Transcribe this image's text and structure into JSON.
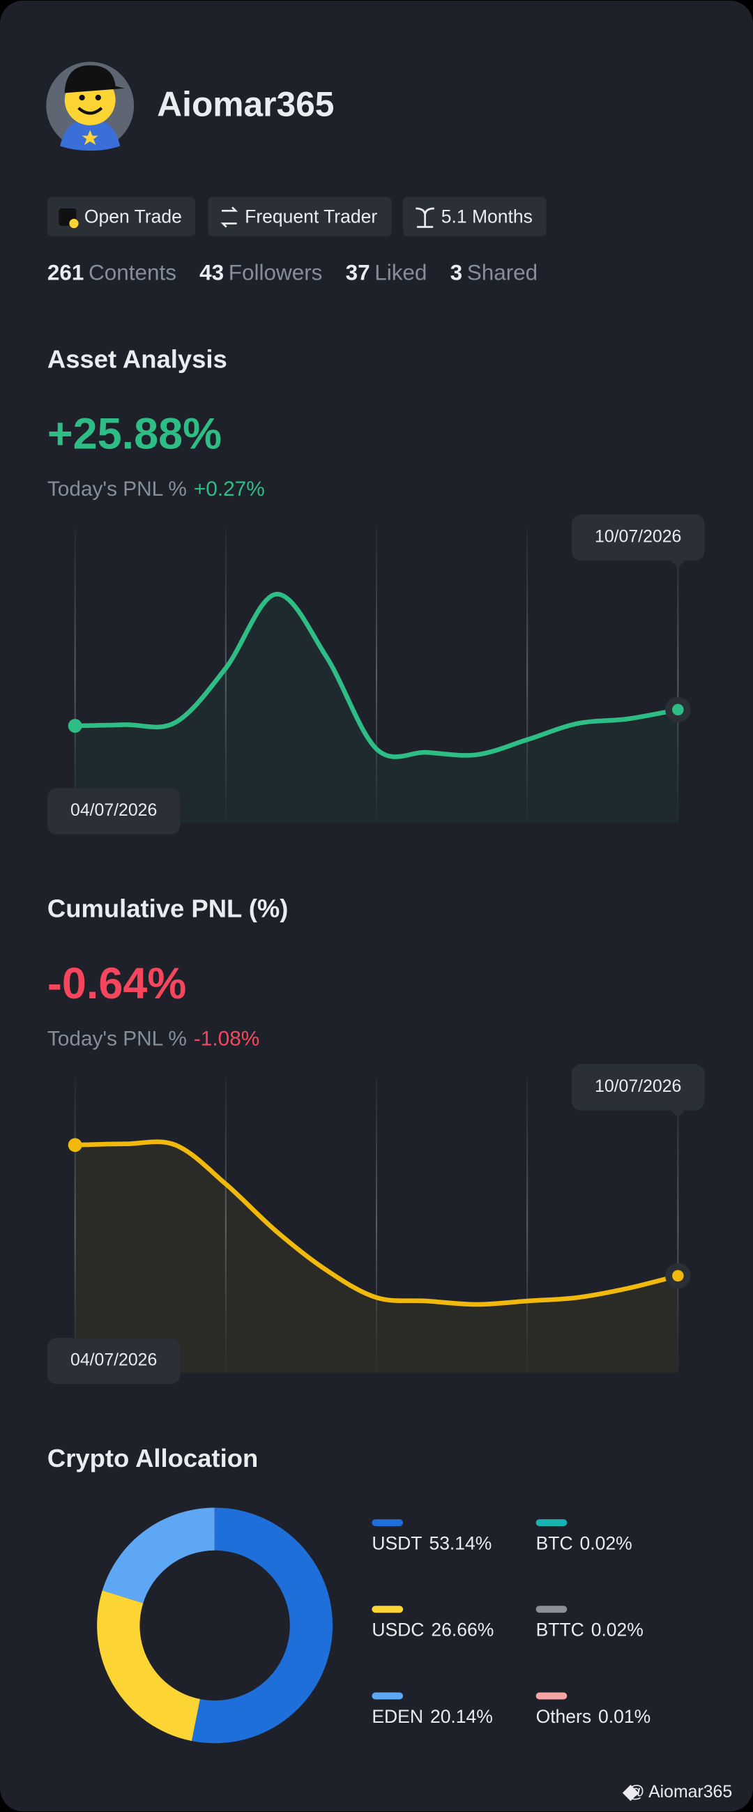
{
  "profile": {
    "name": "Aiomar365",
    "tags": [
      "Open Trade",
      "Frequent Trader",
      "5.1 Months"
    ],
    "stats": [
      {
        "value": 261,
        "label": "Contents"
      },
      {
        "value": 43,
        "label": "Followers"
      },
      {
        "value": 37,
        "label": "Liked"
      },
      {
        "value": 3,
        "label": "Shared"
      }
    ],
    "watermark": "@ Aiomar365"
  },
  "chart_data": [
    {
      "type": "line",
      "title": "Asset Analysis",
      "headline": "+25.88%",
      "subtitle_label": "Today's PNL %",
      "subtitle_value": "+0.27%",
      "color": "#2ebd85",
      "x": [
        "04/07/2026",
        null,
        null,
        null,
        null,
        null,
        null,
        null,
        null,
        null,
        null,
        null,
        "10/07/2026"
      ],
      "values": [
        0,
        1,
        3,
        50,
        114,
        60,
        -20,
        -23,
        -25,
        -12,
        2,
        6,
        14
      ]
    },
    {
      "type": "line",
      "title": "Cumulative PNL (%)",
      "headline": "-0.64%",
      "subtitle_label": "Today's PNL %",
      "subtitle_value": "-1.08%",
      "color": "#f0b90b",
      "x": [
        "04/07/2026",
        null,
        null,
        null,
        null,
        null,
        null,
        null,
        null,
        null,
        null,
        null,
        "10/07/2026"
      ],
      "values": [
        0,
        1,
        0,
        -34,
        -75,
        -109,
        -133,
        -136,
        -139,
        -136,
        -133,
        -125,
        -114
      ]
    },
    {
      "type": "pie",
      "title": "Crypto Allocation",
      "categories": [
        "USDT",
        "USDC",
        "EDEN",
        "BTC",
        "BTTC",
        "Others"
      ],
      "values": [
        53.14,
        26.66,
        20.14,
        0.02,
        0.02,
        0.01
      ],
      "value_labels": [
        "53.14%",
        "26.66%",
        "20.14%",
        "0.02%",
        "0.02%",
        "0.01%"
      ],
      "colors": [
        "#1e6fd9",
        "#fcd535",
        "#5ea7f5",
        "#16b3b0",
        "#8a8f98",
        "#f6a5a5"
      ]
    }
  ]
}
